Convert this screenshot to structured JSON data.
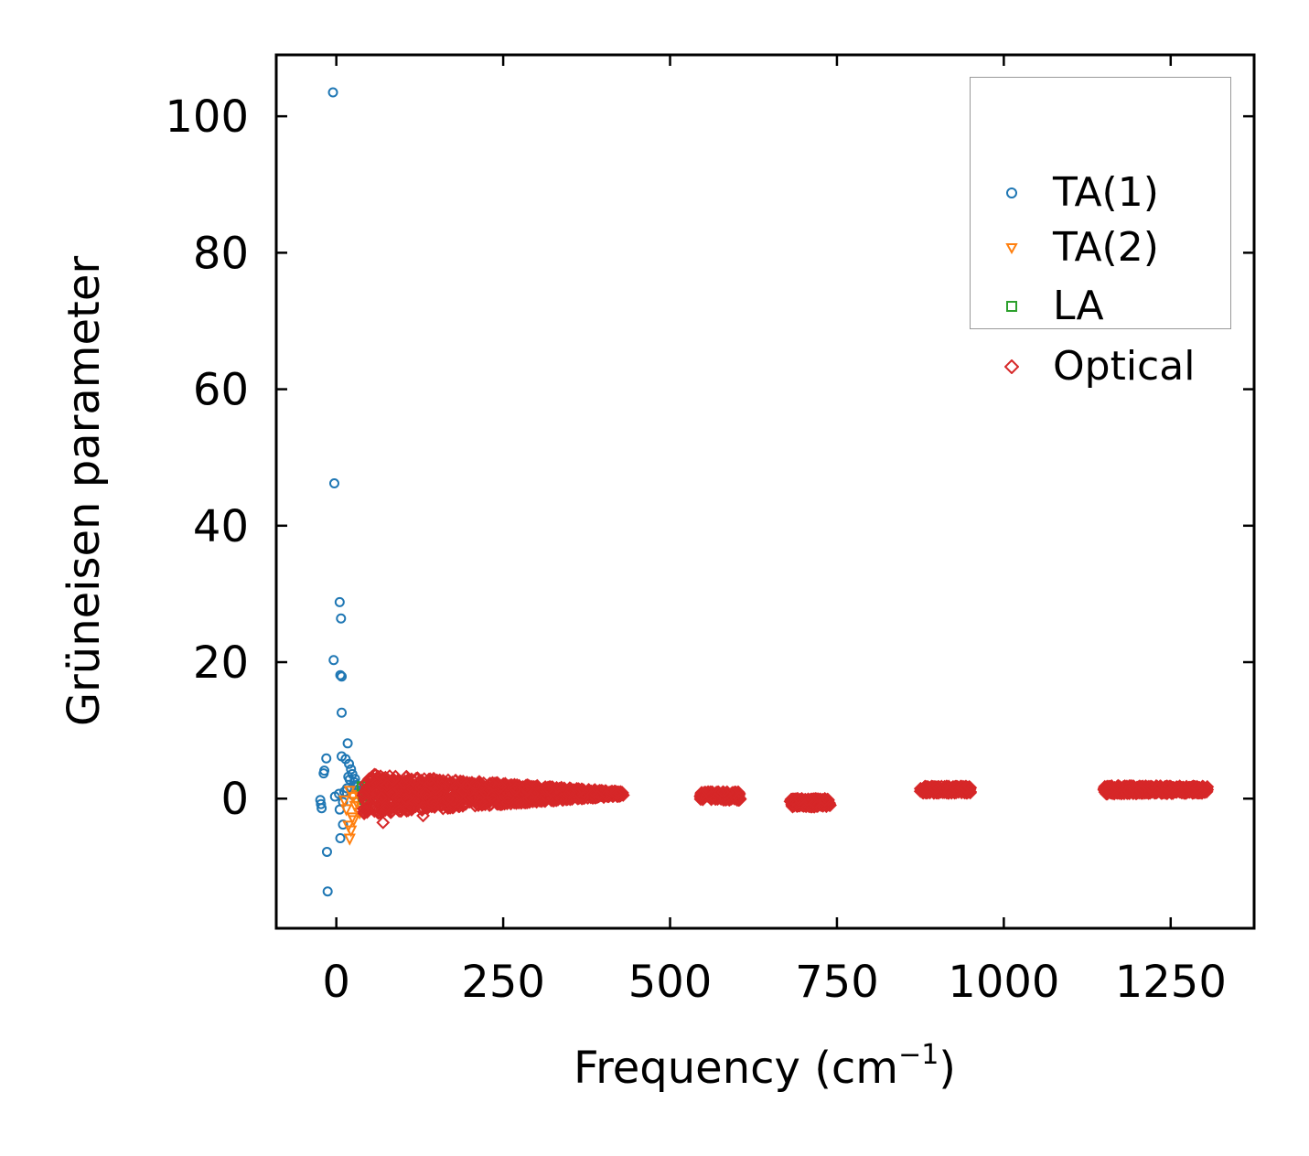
{
  "chart_data": {
    "type": "scatter",
    "title": "",
    "xlabel_main": "Frequency (cm",
    "xlabel_sup": "−1",
    "xlabel_close": ")",
    "ylabel": "Grüneisen parameter",
    "xlim": [
      -90,
      1375
    ],
    "ylim": [
      -19,
      109
    ],
    "xticks": [
      0,
      250,
      500,
      750,
      1000,
      1250
    ],
    "yticks": [
      0,
      20,
      40,
      60,
      80,
      100
    ],
    "legend_position": "top-right",
    "series": [
      {
        "name": "TA(1)",
        "marker": "circle",
        "color": "#1f77b4",
        "points": [
          [
            -5,
            103.5
          ],
          [
            -3,
            46.2
          ],
          [
            5,
            28.8
          ],
          [
            7,
            26.4
          ],
          [
            -4,
            20.3
          ],
          [
            6,
            18.1
          ],
          [
            8,
            17.9
          ],
          [
            8,
            12.6
          ],
          [
            17,
            8.1
          ],
          [
            -15,
            5.9
          ],
          [
            -18,
            4.1
          ],
          [
            -19,
            3.7
          ],
          [
            8,
            6.2
          ],
          [
            14,
            5.8
          ],
          [
            19,
            5.1
          ],
          [
            22,
            4.3
          ],
          [
            24,
            3.6
          ],
          [
            20,
            2.8
          ],
          [
            27,
            2.4
          ],
          [
            30,
            2.0
          ],
          [
            16,
            1.5
          ],
          [
            33,
            1.2
          ],
          [
            36,
            0.9
          ],
          [
            12,
            1.0
          ],
          [
            4,
            0.7
          ],
          [
            -2,
            0.3
          ],
          [
            10,
            -0.5
          ],
          [
            25,
            0.5
          ],
          [
            -24,
            -0.2
          ],
          [
            -23,
            -0.8
          ],
          [
            -22,
            -1.4
          ],
          [
            5,
            -1.6
          ],
          [
            10,
            -3.8
          ],
          [
            6,
            -5.8
          ],
          [
            -14,
            -7.8
          ],
          [
            -13,
            -13.6
          ],
          [
            18,
            3.2
          ],
          [
            28,
            2.9
          ],
          [
            32,
            1.8
          ],
          [
            38,
            0.6
          ]
        ]
      },
      {
        "name": "TA(2)",
        "marker": "triangle-down",
        "color": "#ff7f0e",
        "points": [
          [
            20,
            -5.8
          ],
          [
            22,
            -4.6
          ],
          [
            18,
            -3.9
          ],
          [
            24,
            -2.7
          ],
          [
            15,
            -1.5
          ],
          [
            28,
            -1.0
          ],
          [
            30,
            -0.4
          ],
          [
            12,
            -0.2
          ],
          [
            25,
            0.3
          ],
          [
            33,
            0.6
          ],
          [
            20,
            1.2
          ],
          [
            35,
            -2.0
          ],
          [
            38,
            -1.2
          ],
          [
            26,
            -3.1
          ],
          [
            40,
            0.1
          ],
          [
            42,
            -0.7
          ]
        ]
      },
      {
        "name": "LA",
        "marker": "square",
        "color": "#2ca02c",
        "points": [
          [
            40,
            0.3
          ],
          [
            44,
            0.9
          ],
          [
            48,
            1.5
          ],
          [
            42,
            -0.2
          ],
          [
            50,
            0.6
          ],
          [
            46,
            2.1
          ],
          [
            52,
            1.1
          ],
          [
            38,
            1.8
          ],
          [
            54,
            0.0
          ],
          [
            47,
            -0.5
          ]
        ]
      },
      {
        "name": "Optical",
        "marker": "diamond",
        "color": "#d62728",
        "clusters": [
          {
            "x_range": [
              40,
              430
            ],
            "y_center": 0.7,
            "y_spread_start": 3.0,
            "y_spread_end": 0.3
          },
          {
            "x_range": [
              545,
              605
            ],
            "y_center": 0.4,
            "y_spread_start": 0.6,
            "y_spread_end": 0.6
          },
          {
            "x_range": [
              680,
              740
            ],
            "y_center": -0.6,
            "y_spread_start": 0.6,
            "y_spread_end": 0.6
          },
          {
            "x_range": [
              875,
              950
            ],
            "y_center": 1.3,
            "y_spread_start": 0.5,
            "y_spread_end": 0.5
          },
          {
            "x_range": [
              1150,
              1305
            ],
            "y_center": 1.3,
            "y_spread_start": 0.6,
            "y_spread_end": 0.5
          }
        ],
        "outliers": [
          [
            70,
            -3.5
          ],
          [
            130,
            -2.5
          ],
          [
            95,
            -1.8
          ]
        ]
      }
    ]
  }
}
